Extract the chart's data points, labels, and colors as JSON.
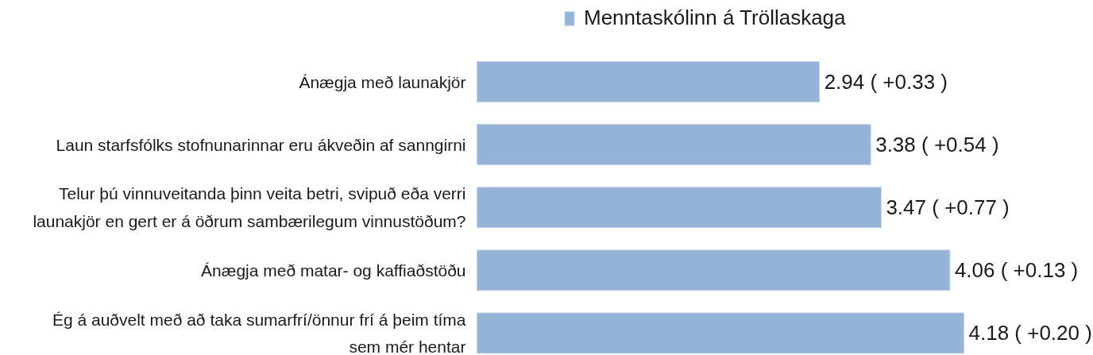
{
  "chart_data": {
    "type": "bar",
    "orientation": "horizontal",
    "categories": [
      "Ánægja með launakjör",
      "Laun starfsfólks stofnunarinnar eru ákveðin af sanngirni",
      "Telur þú vinnuveitanda þinn veita betri, svipuð eða verri launakjör en gert er á öðrum sambærilegum vinnustöðum?",
      "Ánægja með matar- og kaffiaðstöðu",
      "Ég á auðvelt með að taka sumarfrí/önnur frí á þeim tíma sem mér hentar"
    ],
    "series": [
      {
        "name": "Menntaskólinn á Tröllaskaga",
        "color": "#95b3d7",
        "values": [
          2.94,
          3.38,
          3.47,
          4.06,
          4.18
        ],
        "value_labels": [
          "2.94 ( +0.33 )",
          "3.38 ( +0.54 )",
          "3.47 ( +0.77 )",
          "4.06 ( +0.13 )",
          "4.18 ( +0.20 )"
        ]
      }
    ],
    "tick_labels": "y",
    "legend": "top"
  }
}
